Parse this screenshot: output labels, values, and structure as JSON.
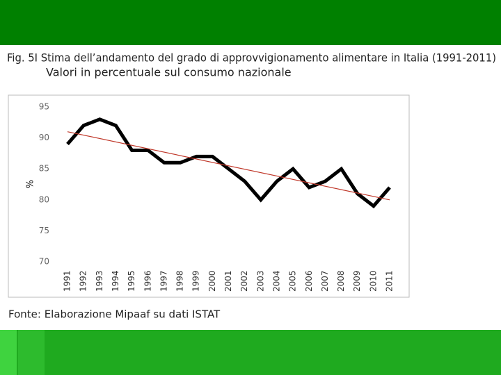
{
  "chart_data": {
    "type": "line",
    "title": "Fig. 5I Stima dell’andamento del grado di approvvigionamento alimentare in Italia (1991-2011)",
    "subtitle": "Valori in percentuale sul consumo nazionale",
    "ylabel": "%",
    "source": "Fonte: Elaborazione Mipaaf su dati ISTAT",
    "categories": [
      "1991",
      "1992",
      "1993",
      "1994",
      "1995",
      "1996",
      "1997",
      "1998",
      "1999",
      "2000",
      "2001",
      "2002",
      "2003",
      "2004",
      "2005",
      "2006",
      "2007",
      "2008",
      "2009",
      "2010",
      "2011"
    ],
    "series": [
      {
        "color": "#000000",
        "values": [
          89,
          92,
          93,
          92,
          88,
          88,
          86,
          86,
          87,
          87,
          85,
          83,
          80,
          83,
          85,
          82,
          83,
          85,
          81,
          79,
          82
        ]
      }
    ],
    "trend": {
      "color": "#c0392b",
      "start": 91,
      "end": 80
    },
    "ylim": [
      70,
      95
    ],
    "yticks": [
      70,
      75,
      80,
      85,
      90,
      95
    ],
    "grid": false
  }
}
